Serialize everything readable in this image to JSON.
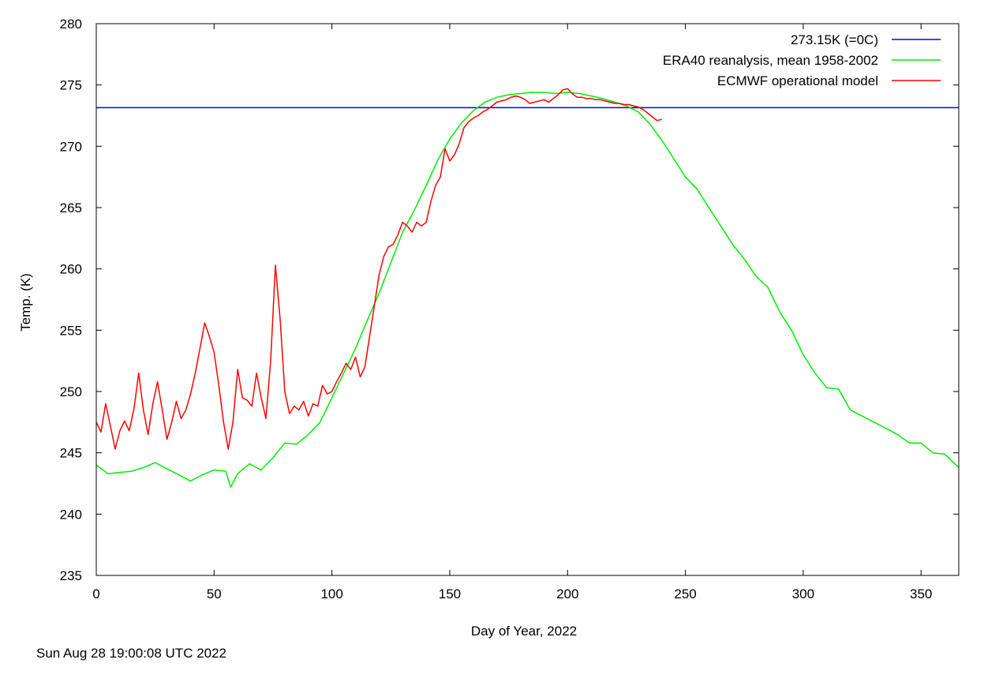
{
  "timestamp": "Sun Aug 28 19:00:08 UTC 2022",
  "chart_data": {
    "type": "line",
    "xlabel": "Day of Year, 2022",
    "ylabel": "Temp. (K)",
    "xlim": [
      0,
      366
    ],
    "ylim": [
      235,
      280
    ],
    "xticks": [
      0,
      50,
      100,
      150,
      200,
      250,
      300,
      350
    ],
    "yticks": [
      235,
      240,
      245,
      250,
      255,
      260,
      265,
      270,
      275,
      280
    ],
    "grid": false,
    "legend_position": "top-right",
    "series": [
      {
        "name": "273.15K (=0C)",
        "color": "#0000ff",
        "x": [
          0,
          366
        ],
        "y": [
          273.15,
          273.15
        ]
      },
      {
        "name": "ERA40 reanalysis, mean 1958-2002",
        "color": "#00ee00",
        "x": [
          0,
          5,
          10,
          15,
          20,
          25,
          30,
          35,
          40,
          45,
          50,
          55,
          57,
          60,
          65,
          70,
          75,
          80,
          85,
          90,
          95,
          100,
          105,
          110,
          115,
          120,
          125,
          130,
          135,
          140,
          145,
          150,
          155,
          160,
          165,
          170,
          175,
          180,
          185,
          190,
          195,
          200,
          205,
          210,
          215,
          220,
          225,
          230,
          235,
          240,
          245,
          250,
          255,
          260,
          265,
          270,
          275,
          280,
          285,
          290,
          295,
          300,
          305,
          310,
          315,
          320,
          325,
          330,
          335,
          340,
          345,
          350,
          355,
          360,
          366
        ],
        "y": [
          244.0,
          243.3,
          243.4,
          243.5,
          243.8,
          244.2,
          243.7,
          243.2,
          242.7,
          243.2,
          243.6,
          243.5,
          242.2,
          243.3,
          244.1,
          243.6,
          244.6,
          245.8,
          245.7,
          246.5,
          247.5,
          249.5,
          251.5,
          253.5,
          255.8,
          258.0,
          260.5,
          263.0,
          264.8,
          266.8,
          268.9,
          270.6,
          271.9,
          272.9,
          273.6,
          274.0,
          274.2,
          274.3,
          274.4,
          274.4,
          274.3,
          274.4,
          274.3,
          274.1,
          273.9,
          273.6,
          273.3,
          272.8,
          271.8,
          270.5,
          269.0,
          267.5,
          266.5,
          265.0,
          263.5,
          262.0,
          260.8,
          259.4,
          258.5,
          256.5,
          255.0,
          253.0,
          251.5,
          250.3,
          250.2,
          248.5,
          248.0,
          247.5,
          247.0,
          246.5,
          245.8,
          245.8,
          245.0,
          244.9,
          243.8
        ]
      },
      {
        "name": "ECMWF operational model",
        "color": "#ff0000",
        "x": [
          0,
          2,
          4,
          6,
          8,
          10,
          12,
          14,
          16,
          18,
          20,
          22,
          24,
          26,
          28,
          30,
          32,
          34,
          36,
          38,
          40,
          42,
          44,
          46,
          48,
          50,
          52,
          54,
          56,
          58,
          60,
          62,
          64,
          66,
          68,
          70,
          72,
          74,
          76,
          78,
          80,
          82,
          84,
          86,
          88,
          90,
          92,
          94,
          96,
          98,
          100,
          102,
          104,
          106,
          108,
          110,
          112,
          114,
          116,
          118,
          120,
          122,
          124,
          126,
          128,
          130,
          132,
          134,
          136,
          138,
          140,
          142,
          144,
          146,
          148,
          150,
          152,
          154,
          156,
          158,
          160,
          162,
          164,
          166,
          168,
          170,
          172,
          174,
          176,
          178,
          180,
          182,
          184,
          186,
          188,
          190,
          192,
          194,
          196,
          198,
          200,
          202,
          204,
          206,
          208,
          210,
          212,
          214,
          216,
          218,
          220,
          222,
          224,
          226,
          228,
          230,
          232,
          234,
          236,
          238,
          240
        ],
        "y": [
          247.5,
          246.7,
          249.0,
          247.2,
          245.3,
          246.8,
          247.6,
          246.8,
          248.6,
          251.5,
          248.5,
          246.5,
          249.0,
          250.8,
          248.5,
          246.1,
          247.5,
          249.2,
          247.8,
          248.5,
          249.8,
          251.5,
          253.5,
          255.6,
          254.5,
          253.2,
          250.5,
          247.5,
          245.3,
          247.5,
          251.8,
          249.5,
          249.3,
          248.8,
          251.5,
          249.5,
          247.8,
          252.5,
          260.3,
          256.0,
          250.0,
          248.2,
          248.8,
          248.5,
          249.2,
          248.0,
          249.0,
          248.8,
          250.5,
          249.8,
          250.0,
          250.8,
          251.5,
          252.3,
          251.8,
          252.8,
          251.2,
          252.0,
          254.5,
          257.0,
          259.5,
          261.0,
          261.8,
          262.0,
          262.8,
          263.8,
          263.5,
          263.0,
          263.8,
          263.5,
          263.8,
          265.5,
          266.8,
          267.5,
          269.8,
          268.8,
          269.3,
          270.2,
          271.5,
          272.0,
          272.3,
          272.5,
          272.8,
          273.0,
          273.3,
          273.6,
          273.7,
          273.8,
          274.0,
          274.1,
          274.0,
          273.8,
          273.5,
          273.6,
          273.7,
          273.8,
          273.6,
          273.9,
          274.2,
          274.6,
          274.7,
          274.3,
          274.0,
          274.0,
          273.9,
          273.9,
          273.8,
          273.8,
          273.7,
          273.6,
          273.5,
          273.5,
          273.4,
          273.4,
          273.3,
          273.2,
          273.0,
          272.7,
          272.4,
          272.1,
          272.2
        ]
      }
    ]
  }
}
